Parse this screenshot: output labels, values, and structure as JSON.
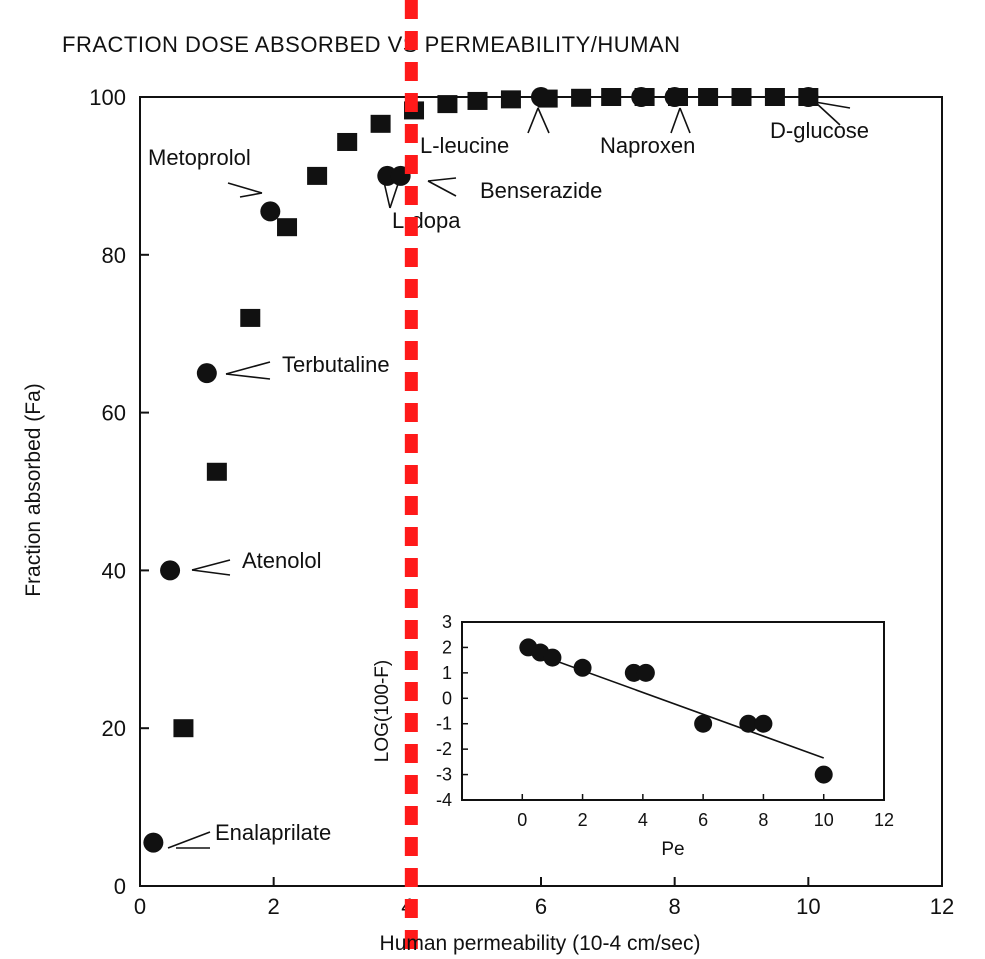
{
  "chart_data": {
    "type": "scatter",
    "title": "FRACTION DOSE ABSORBED VS PERMEABILITY/HUMAN",
    "xlabel": "Human permeability (10-4 cm/sec)",
    "ylabel": "Fraction absorbed (Fa)",
    "xlim": [
      0,
      12
    ],
    "ylim": [
      0,
      100
    ],
    "xticks": [
      "0",
      "2",
      "4",
      "6",
      "8",
      "10",
      "12"
    ],
    "yticks": [
      "0",
      "20",
      "40",
      "60",
      "80",
      "100"
    ],
    "grid": false,
    "reference_line": {
      "x": 4.0,
      "style": "dashed",
      "color": "#ff1a1a"
    },
    "series": [
      {
        "marker": "square",
        "points": [
          {
            "x": 0.65,
            "y": 20
          },
          {
            "x": 1.15,
            "y": 52.5
          },
          {
            "x": 1.65,
            "y": 72
          },
          {
            "x": 2.2,
            "y": 83.5
          },
          {
            "x": 2.65,
            "y": 90
          },
          {
            "x": 3.1,
            "y": 94.3
          },
          {
            "x": 3.6,
            "y": 96.6
          },
          {
            "x": 4.1,
            "y": 98.3
          },
          {
            "x": 4.6,
            "y": 99.1
          },
          {
            "x": 5.05,
            "y": 99.5
          },
          {
            "x": 5.55,
            "y": 99.7
          },
          {
            "x": 6.1,
            "y": 99.8
          },
          {
            "x": 6.6,
            "y": 99.9
          },
          {
            "x": 7.05,
            "y": 100
          },
          {
            "x": 7.55,
            "y": 100
          },
          {
            "x": 8.05,
            "y": 100
          },
          {
            "x": 8.5,
            "y": 100
          },
          {
            "x": 9.0,
            "y": 100
          },
          {
            "x": 9.5,
            "y": 100
          },
          {
            "x": 10.0,
            "y": 100
          }
        ]
      },
      {
        "marker": "circle",
        "points": [
          {
            "x": 0.2,
            "y": 5.5,
            "label": "Enalaprilate"
          },
          {
            "x": 0.45,
            "y": 40,
            "label": "Atenolol"
          },
          {
            "x": 1.0,
            "y": 65,
            "label": "Terbutaline"
          },
          {
            "x": 1.95,
            "y": 85.5,
            "label": "Metoprolol"
          },
          {
            "x": 3.7,
            "y": 90,
            "label": "L-dopa"
          },
          {
            "x": 3.9,
            "y": 90,
            "label": "Benserazide"
          },
          {
            "x": 6.0,
            "y": 100,
            "label": "L-leucine"
          },
          {
            "x": 7.5,
            "y": 100
          },
          {
            "x": 8.0,
            "y": 100,
            "label": "Naproxen"
          },
          {
            "x": 10.0,
            "y": 100,
            "label": "D-glucose"
          }
        ]
      }
    ],
    "annotations": [
      {
        "text": "Metoprolol",
        "points_to": [
          1.95,
          85.5
        ]
      },
      {
        "text": "Benserazide",
        "points_to": [
          3.9,
          90
        ]
      },
      {
        "text": "L-dopa",
        "points_to": [
          3.7,
          90
        ]
      },
      {
        "text": "L-leucine",
        "points_to": [
          6.0,
          100
        ]
      },
      {
        "text": "Naproxen",
        "points_to": [
          8.0,
          100
        ]
      },
      {
        "text": "D-glucose",
        "points_to": [
          10.0,
          100
        ]
      },
      {
        "text": "Terbutaline",
        "points_to": [
          1.0,
          65
        ]
      },
      {
        "text": "Atenolol",
        "points_to": [
          0.45,
          40
        ]
      },
      {
        "text": "Enalaprilate",
        "points_to": [
          0.2,
          5.5
        ]
      }
    ],
    "inset": {
      "type": "scatter",
      "xlabel": "Pe",
      "ylabel": "LOG(100-F)",
      "xlim": [
        -2,
        12
      ],
      "ylim": [
        -4,
        3
      ],
      "xticks": [
        "0",
        "2",
        "4",
        "6",
        "8",
        "10",
        "12"
      ],
      "yticks": [
        "3",
        "2",
        "1",
        "0",
        "-1",
        "-2",
        "-3",
        "-4"
      ],
      "points": [
        {
          "x": 0.2,
          "y": 2.0
        },
        {
          "x": 0.6,
          "y": 1.8
        },
        {
          "x": 1.0,
          "y": 1.6
        },
        {
          "x": 2.0,
          "y": 1.2
        },
        {
          "x": 3.7,
          "y": 1.0
        },
        {
          "x": 4.1,
          "y": 1.0
        },
        {
          "x": 6.0,
          "y": -1.0
        },
        {
          "x": 7.5,
          "y": -1.0
        },
        {
          "x": 8.0,
          "y": -1.0
        },
        {
          "x": 10.0,
          "y": -3.0
        }
      ],
      "fit_line": {
        "x": [
          0,
          10
        ],
        "y": [
          1.95,
          -2.35
        ]
      }
    }
  }
}
